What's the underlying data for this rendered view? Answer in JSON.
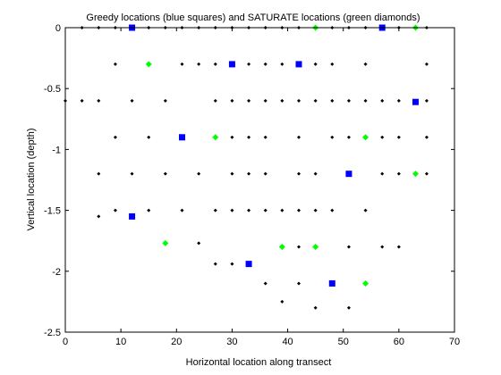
{
  "chart_data": {
    "type": "scatter",
    "title": "Greedy locations (blue squares) and SATURATE locations (green diamonds)",
    "xlabel": "Horizontal location along transect",
    "ylabel": "Vertical location (depth)",
    "xlim": [
      0,
      70
    ],
    "ylim": [
      -2.5,
      0
    ],
    "xticks": [
      0,
      10,
      20,
      30,
      40,
      50,
      60,
      70
    ],
    "yticks": [
      0,
      -0.5,
      -1,
      -1.5,
      -2,
      -2.5
    ],
    "xtick_labels": [
      "0",
      "10",
      "20",
      "30",
      "40",
      "50",
      "60",
      "70"
    ],
    "ytick_labels": [
      "0",
      "-0.5",
      "-1",
      "-1.5",
      "-2",
      "-2.5"
    ],
    "grid": false,
    "colors": {
      "candidate": "#000000",
      "greedy": "#0000ff",
      "saturate": "#00ff00"
    },
    "series": [
      {
        "marker": "dot",
        "x": [
          3,
          6,
          9,
          15,
          18,
          21,
          24,
          27,
          30,
          33,
          36,
          39,
          42,
          48,
          51,
          54,
          60,
          65,
          9,
          21,
          24,
          27,
          33,
          36,
          39,
          45,
          48,
          54,
          65,
          0,
          3,
          6,
          12,
          18,
          27,
          30,
          33,
          36,
          39,
          42,
          45,
          48,
          51,
          54,
          57,
          60,
          65,
          9,
          15,
          30,
          33,
          36,
          42,
          48,
          51,
          57,
          60,
          65,
          6,
          12,
          18,
          24,
          30,
          33,
          36,
          42,
          45,
          57,
          60,
          65,
          6,
          9,
          15,
          21,
          27,
          30,
          33,
          36,
          39,
          42,
          45,
          48,
          54,
          24,
          39,
          42,
          51,
          57,
          60,
          27,
          30,
          36,
          42,
          39,
          45,
          51
        ],
        "y": [
          0,
          0,
          0,
          0,
          0,
          0,
          0,
          0,
          0,
          0,
          0,
          0,
          0,
          0,
          0,
          0,
          0,
          0,
          -0.3,
          -0.3,
          -0.3,
          -0.3,
          -0.3,
          -0.3,
          -0.3,
          -0.3,
          -0.3,
          -0.3,
          -0.3,
          -0.6,
          -0.6,
          -0.6,
          -0.6,
          -0.6,
          -0.6,
          -0.6,
          -0.6,
          -0.6,
          -0.6,
          -0.6,
          -0.6,
          -0.6,
          -0.6,
          -0.6,
          -0.6,
          -0.6,
          -0.6,
          -0.9,
          -0.9,
          -0.9,
          -0.9,
          -0.9,
          -0.9,
          -0.9,
          -0.9,
          -0.9,
          -0.9,
          -0.9,
          -1.2,
          -1.2,
          -1.2,
          -1.2,
          -1.2,
          -1.2,
          -1.2,
          -1.2,
          -1.2,
          -1.2,
          -1.2,
          -1.2,
          -1.55,
          -1.5,
          -1.5,
          -1.5,
          -1.5,
          -1.5,
          -1.5,
          -1.5,
          -1.5,
          -1.5,
          -1.5,
          -1.5,
          -1.5,
          -1.77,
          -1.8,
          -1.8,
          -1.8,
          -1.8,
          -1.8,
          -1.94,
          -1.94,
          -2.1,
          -2.1,
          -2.25,
          -2.3,
          -2.3
        ]
      },
      {
        "marker": "square",
        "x": [
          12,
          57,
          30,
          42,
          63,
          21,
          51,
          12,
          33,
          48
        ],
        "y": [
          0,
          0,
          -0.3,
          -0.3,
          -0.61,
          -0.9,
          -1.2,
          -1.55,
          -1.94,
          -2.1
        ]
      },
      {
        "marker": "diamond",
        "x": [
          45,
          63,
          15,
          27,
          54,
          63,
          18,
          39,
          45,
          54
        ],
        "y": [
          0,
          0,
          -0.3,
          -0.9,
          -0.9,
          -1.2,
          -1.77,
          -1.8,
          -1.8,
          -2.1
        ]
      }
    ]
  }
}
